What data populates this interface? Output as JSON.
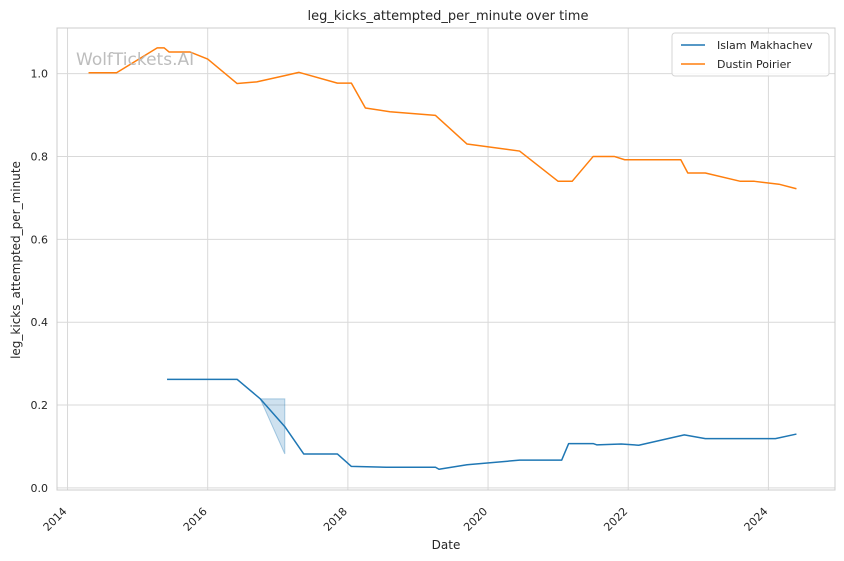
{
  "chart_data": {
    "type": "line",
    "title": "leg_kicks_attempted_per_minute over time",
    "xlabel": "Date",
    "ylabel": "leg_kicks_attempted_per_minute",
    "watermark": "WolfTickets.AI",
    "xlim": [
      2013.85,
      2024.95
    ],
    "ylim": [
      -0.005,
      1.11
    ],
    "xticks": [
      {
        "value": 2014,
        "label": "2014"
      },
      {
        "value": 2016,
        "label": "2016"
      },
      {
        "value": 2018,
        "label": "2018"
      },
      {
        "value": 2020,
        "label": "2020"
      },
      {
        "value": 2022,
        "label": "2022"
      },
      {
        "value": 2024,
        "label": "2024"
      }
    ],
    "yticks": [
      {
        "value": 0.0,
        "label": "0.0"
      },
      {
        "value": 0.2,
        "label": "0.2"
      },
      {
        "value": 0.4,
        "label": "0.4"
      },
      {
        "value": 0.6,
        "label": "0.6"
      },
      {
        "value": 0.8,
        "label": "0.8"
      },
      {
        "value": 1.0,
        "label": "1.0"
      }
    ],
    "grid": true,
    "legend_position": "top-right",
    "series": [
      {
        "name": "Islam Makhachev",
        "color": "#1f77b4",
        "x": [
          2015.42,
          2016.42,
          2016.75,
          2017.1,
          2017.37,
          2017.85,
          2018.05,
          2018.55,
          2019.25,
          2019.3,
          2019.7,
          2020.45,
          2021.05,
          2021.15,
          2021.5,
          2021.55,
          2021.9,
          2022.15,
          2022.8,
          2023.1,
          2023.5,
          2024.1,
          2024.4
        ],
        "y": [
          0.262,
          0.262,
          0.215,
          0.148,
          0.082,
          0.082,
          0.052,
          0.05,
          0.05,
          0.045,
          0.056,
          0.067,
          0.067,
          0.107,
          0.107,
          0.104,
          0.106,
          0.103,
          0.128,
          0.119,
          0.119,
          0.119,
          0.13
        ]
      },
      {
        "name": "Dustin Poirier",
        "color": "#ff7f0e",
        "x": [
          2014.3,
          2014.7,
          2015.28,
          2015.38,
          2015.45,
          2015.75,
          2016.0,
          2016.42,
          2016.7,
          2017.1,
          2017.3,
          2017.85,
          2018.05,
          2018.25,
          2018.6,
          2019.25,
          2019.7,
          2020.45,
          2021.0,
          2021.2,
          2021.5,
          2021.8,
          2021.95,
          2022.75,
          2022.85,
          2023.1,
          2023.6,
          2023.8,
          2024.15,
          2024.4
        ],
        "y": [
          1.002,
          1.002,
          1.062,
          1.062,
          1.052,
          1.052,
          1.035,
          0.976,
          0.98,
          0.995,
          1.003,
          0.977,
          0.977,
          0.917,
          0.908,
          0.899,
          0.83,
          0.813,
          0.74,
          0.74,
          0.8,
          0.8,
          0.792,
          0.792,
          0.76,
          0.76,
          0.74,
          0.74,
          0.733,
          0.722
        ]
      }
    ],
    "bands": [
      {
        "series": "Islam Makhachev",
        "x": [
          2016.75,
          2017.1
        ],
        "y_low": [
          0.215,
          0.082
        ],
        "y_high": [
          0.215,
          0.215
        ]
      }
    ]
  }
}
